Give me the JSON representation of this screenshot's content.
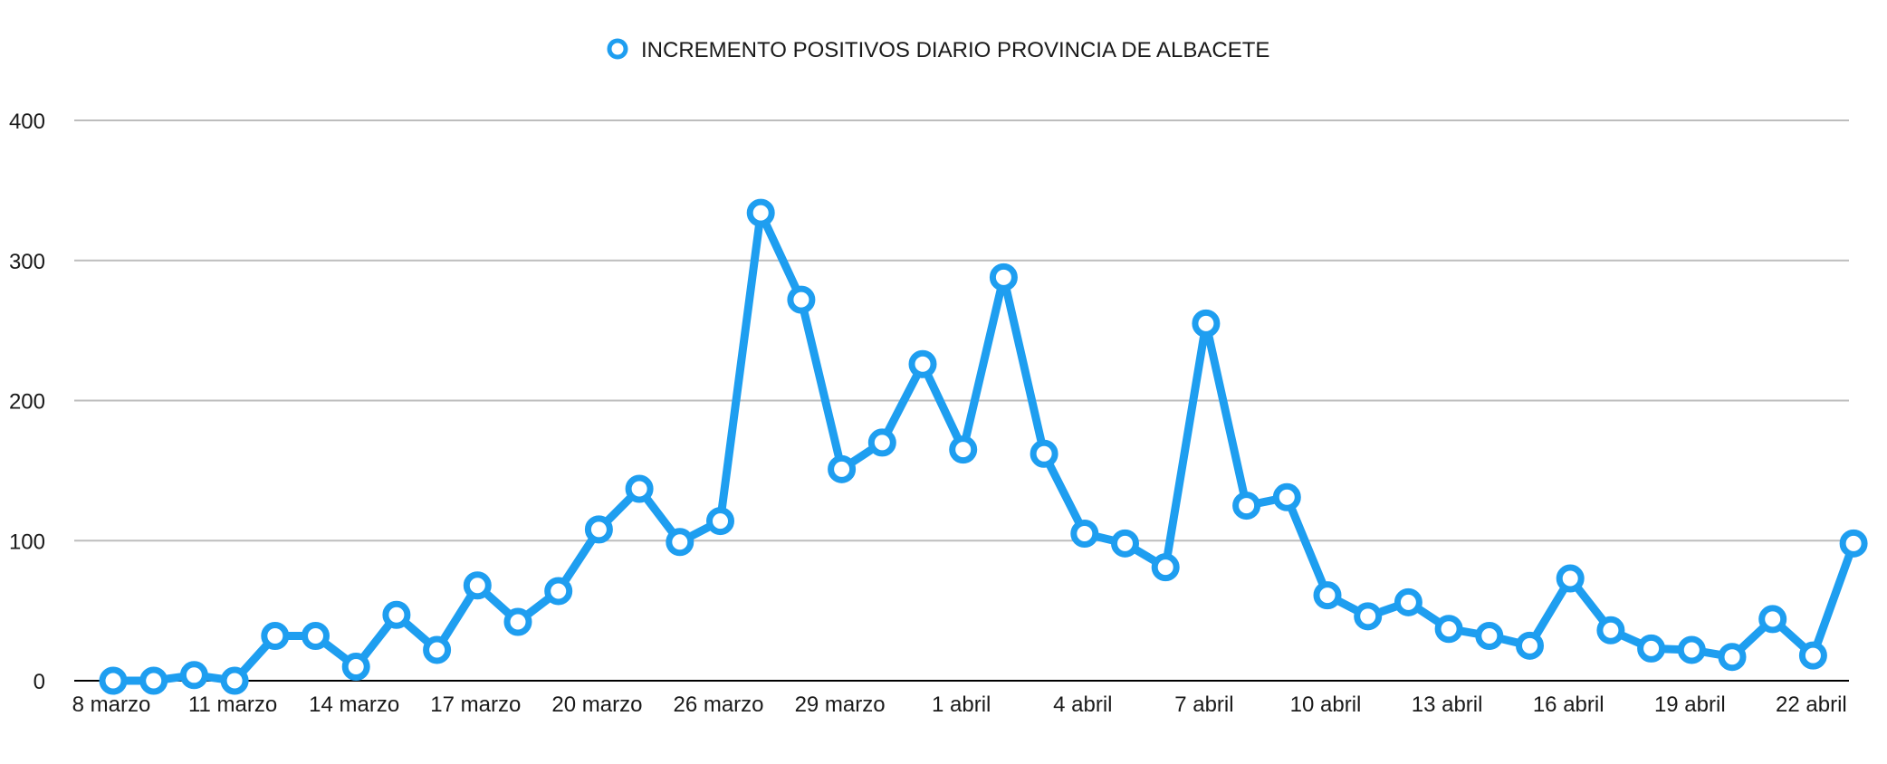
{
  "chart_data": {
    "type": "line",
    "title": "",
    "xlabel": "",
    "ylabel": "",
    "ylim": [
      0,
      400
    ],
    "yticks": [
      0,
      100,
      200,
      300,
      400
    ],
    "grid": true,
    "legend_position": "top-center",
    "colors": {
      "series": "#1e9ef0",
      "grid": "#bdbdbd",
      "axis": "#000000",
      "marker_fill": "#ffffff"
    },
    "x_tick_labels": [
      "8 marzo",
      "11 marzo",
      "14 marzo",
      "17 marzo",
      "20 marzo",
      "26 marzo",
      "29 marzo",
      "1 abril",
      "4 abril",
      "7 abril",
      "10 abril",
      "13 abril",
      "16 abril",
      "19 abril",
      "22 abril"
    ],
    "series": [
      {
        "name": "INCREMENTO POSITIVOS DIARIO PROVINCIA DE ALBACETE",
        "values": [
          0,
          0,
          4,
          0,
          32,
          32,
          10,
          47,
          22,
          68,
          42,
          64,
          108,
          137,
          99,
          114,
          334,
          272,
          151,
          170,
          226,
          165,
          288,
          162,
          105,
          98,
          81,
          255,
          125,
          131,
          61,
          46,
          56,
          37,
          32,
          25,
          73,
          36,
          23,
          22,
          17,
          44,
          18,
          98
        ]
      }
    ]
  }
}
